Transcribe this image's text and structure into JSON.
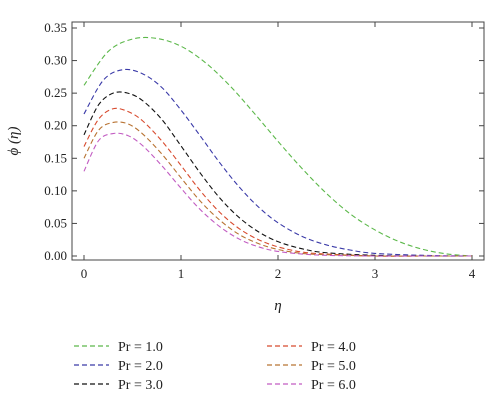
{
  "chart_data": {
    "type": "line",
    "xlabel": "η",
    "ylabel": "ϕ (η)",
    "xlim": [
      0,
      4
    ],
    "ylim": [
      0,
      0.35
    ],
    "xticks": [
      0,
      1,
      2,
      3,
      4
    ],
    "yticks": [
      0.0,
      0.05,
      0.1,
      0.15,
      0.2,
      0.25,
      0.3,
      0.35
    ],
    "xtick_labels": [
      "0",
      "1",
      "2",
      "3",
      "4"
    ],
    "ytick_labels": [
      "0.00",
      "0.05",
      "0.10",
      "0.15",
      "0.20",
      "0.25",
      "0.30",
      "0.35"
    ],
    "grid": false,
    "legend_position": "bottom",
    "series": [
      {
        "name": "Pr = 1.0",
        "color": "#5cb84a",
        "x": [
          0,
          0.25,
          0.5,
          0.75,
          1.0,
          1.25,
          1.5,
          1.75,
          2.0,
          2.25,
          2.5,
          2.75,
          3.0,
          3.25,
          3.5,
          3.75,
          4.0
        ],
        "y": [
          0.262,
          0.314,
          0.333,
          0.334,
          0.322,
          0.297,
          0.262,
          0.22,
          0.176,
          0.134,
          0.096,
          0.064,
          0.04,
          0.022,
          0.01,
          0.003,
          0.0
        ]
      },
      {
        "name": "Pr = 2.0",
        "color": "#3a3aa8",
        "x": [
          0,
          0.2,
          0.4,
          0.6,
          0.8,
          1.0,
          1.2,
          1.4,
          1.6,
          1.8,
          2.0,
          2.25,
          2.5,
          2.75,
          3.0,
          3.5,
          4.0
        ],
        "y": [
          0.218,
          0.27,
          0.286,
          0.28,
          0.259,
          0.224,
          0.184,
          0.143,
          0.106,
          0.075,
          0.051,
          0.03,
          0.017,
          0.009,
          0.004,
          0.001,
          0.0
        ]
      },
      {
        "name": "Pr = 3.0",
        "color": "#111111",
        "x": [
          0,
          0.15,
          0.3,
          0.45,
          0.6,
          0.8,
          1.0,
          1.2,
          1.4,
          1.6,
          1.8,
          2.0,
          2.25,
          2.5,
          3.0,
          3.5,
          4.0
        ],
        "y": [
          0.186,
          0.232,
          0.25,
          0.25,
          0.239,
          0.21,
          0.169,
          0.127,
          0.089,
          0.059,
          0.037,
          0.022,
          0.011,
          0.005,
          0.001,
          0.0,
          0.0
        ]
      },
      {
        "name": "Pr = 4.0",
        "color": "#d84a2e",
        "x": [
          0,
          0.15,
          0.3,
          0.45,
          0.6,
          0.8,
          1.0,
          1.2,
          1.4,
          1.6,
          1.8,
          2.0,
          2.25,
          2.5,
          3.0,
          3.5,
          4.0
        ],
        "y": [
          0.168,
          0.21,
          0.226,
          0.222,
          0.208,
          0.177,
          0.139,
          0.1,
          0.067,
          0.042,
          0.025,
          0.014,
          0.006,
          0.003,
          0.0,
          0.0,
          0.0
        ]
      },
      {
        "name": "Pr = 5.0",
        "color": "#b87333",
        "x": [
          0,
          0.15,
          0.3,
          0.45,
          0.6,
          0.8,
          1.0,
          1.2,
          1.4,
          1.6,
          1.8,
          2.0,
          2.25,
          2.5,
          3.0,
          3.5,
          4.0
        ],
        "y": [
          0.15,
          0.193,
          0.205,
          0.203,
          0.188,
          0.157,
          0.12,
          0.084,
          0.055,
          0.033,
          0.019,
          0.01,
          0.004,
          0.002,
          0.0,
          0.0,
          0.0
        ]
      },
      {
        "name": "Pr = 6.0",
        "color": "#c25cc2",
        "x": [
          0,
          0.15,
          0.3,
          0.45,
          0.6,
          0.8,
          1.0,
          1.2,
          1.4,
          1.6,
          1.8,
          2.0,
          2.25,
          2.5,
          3.0,
          3.5,
          4.0
        ],
        "y": [
          0.13,
          0.177,
          0.188,
          0.185,
          0.17,
          0.139,
          0.104,
          0.071,
          0.045,
          0.026,
          0.014,
          0.007,
          0.003,
          0.001,
          0.0,
          0.0,
          0.0
        ]
      }
    ]
  }
}
